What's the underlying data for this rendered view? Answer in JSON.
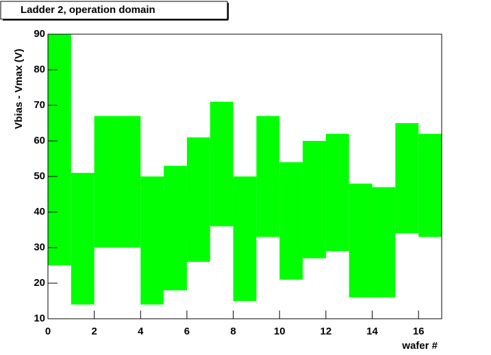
{
  "chart_data": {
    "type": "range-bar",
    "title": "Ladder  2, operation domain",
    "ylabel": "Vbias - Vmax (V)",
    "xlabel": "wafer #",
    "bins": [
      0,
      1,
      2,
      3,
      4,
      5,
      6,
      7,
      8,
      9,
      10,
      11,
      12,
      13,
      14,
      15,
      16,
      17
    ],
    "low": [
      25,
      14,
      30,
      30,
      14,
      18,
      26,
      36,
      15,
      33,
      21,
      27,
      29,
      16,
      16,
      34,
      33
    ],
    "high": [
      90,
      51,
      67,
      67,
      50,
      53,
      61,
      71,
      50,
      67,
      54,
      60,
      62,
      48,
      47,
      65,
      62
    ],
    "color": "#00ff00",
    "xlim": [
      0,
      17
    ],
    "xticks": [
      0,
      2,
      4,
      6,
      8,
      10,
      12,
      14,
      16
    ],
    "ylim": [
      10,
      90
    ],
    "yticks": [
      10,
      20,
      30,
      40,
      50,
      60,
      70,
      80,
      90
    ]
  }
}
